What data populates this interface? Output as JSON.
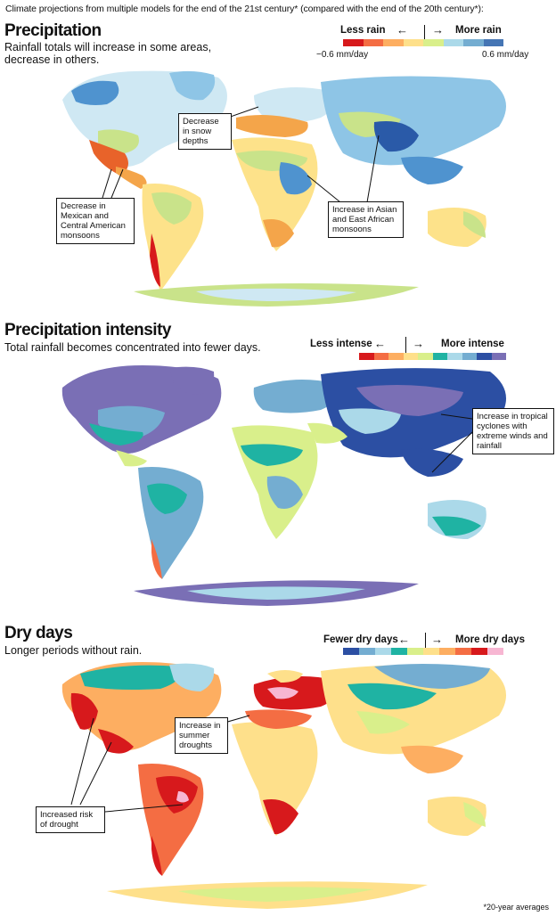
{
  "intro": "Climate projections from multiple models for the end of the 21st century* (compared with the end of the 20th century*):",
  "panels": {
    "precipitation": {
      "title": "Precipitation",
      "subtitle": "Rainfall totals will increase in some areas, decrease in others.",
      "legend": {
        "left_label": "Less rain",
        "right_label": "More rain",
        "min_label": "−0.6 mm/day",
        "max_label": "0.6 mm/day",
        "colors": [
          "#d7191c",
          "#f46d43",
          "#fdae61",
          "#fee08b",
          "#d9ef8b",
          "#abd9e9",
          "#74add1",
          "#4575b4"
        ]
      },
      "callouts": [
        "Decrease in snow depths",
        "Decrease in Mexican and Central American monsoons",
        "Increase in Asian and East African monsoons"
      ]
    },
    "intensity": {
      "title": "Precipitation intensity",
      "subtitle": "Total rainfall becomes concentrated into fewer days.",
      "legend": {
        "left_label": "Less intense",
        "right_label": "More intense",
        "colors": [
          "#d7191c",
          "#f46d43",
          "#fdae61",
          "#fee08b",
          "#d9ef8b",
          "#1fb3a3",
          "#abd9e9",
          "#74add1",
          "#2c4fa3",
          "#7a6fb5"
        ]
      },
      "callouts": [
        "Increase in tropical cyclones with extreme winds and rainfall"
      ]
    },
    "drydays": {
      "title": "Dry days",
      "subtitle": "Longer periods without rain.",
      "legend": {
        "left_label": "Fewer dry days",
        "right_label": "More dry days",
        "colors": [
          "#2c4fa3",
          "#74add1",
          "#abd9e9",
          "#1fb3a3",
          "#d9ef8b",
          "#fee08b",
          "#fdae61",
          "#f46d43",
          "#d7191c",
          "#f7b6d2"
        ]
      },
      "callouts": [
        "Increase in summer droughts",
        "Increased risk of drought"
      ]
    }
  },
  "footnote": "*20-year averages",
  "map_colors": {
    "precip": {
      "land": "#cfe8f3",
      "wet": "#8ec5e6",
      "wetter": "#4f93cf",
      "wettest": "#2a5aa8",
      "dry": "#f4a54a",
      "drier": "#e8632a",
      "driest": "#d7191c",
      "neutral": "#c9e38a",
      "yellow": "#fde28a"
    },
    "intensity": {
      "land": "#abd9e9",
      "purple": "#7a6fb5",
      "navy": "#2c4fa3",
      "teal": "#1fb3a3",
      "green": "#d9ef8b",
      "light": "#cfe8f3",
      "orange": "#f46d43"
    },
    "dry": {
      "land": "#fee08b",
      "orange": "#f46d43",
      "red": "#d7191c",
      "amber": "#fdae61",
      "teal": "#1fb3a3",
      "light": "#abd9e9",
      "blue": "#74add1",
      "navy": "#2c4fa3",
      "green": "#d9ef8b",
      "pink": "#f7b6d2"
    }
  }
}
